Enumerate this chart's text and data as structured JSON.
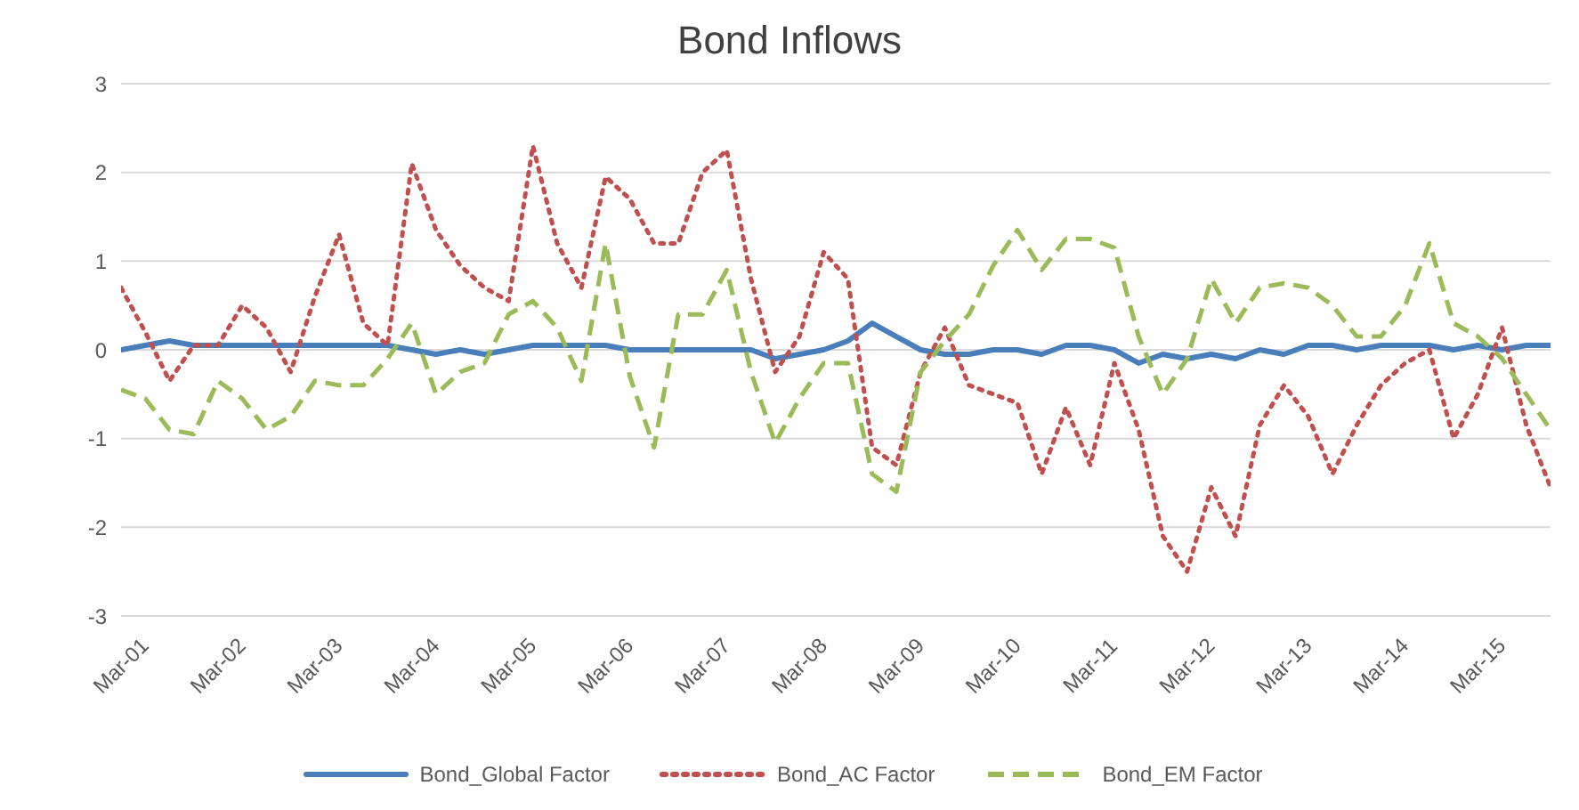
{
  "chart_data": {
    "type": "line",
    "title": "Bond Inflows",
    "categories": [
      "Mar-01",
      null,
      null,
      null,
      "Mar-02",
      null,
      null,
      null,
      "Mar-03",
      null,
      null,
      null,
      "Mar-04",
      null,
      null,
      null,
      "Mar-05",
      null,
      null,
      null,
      "Mar-06",
      null,
      null,
      null,
      "Mar-07",
      null,
      null,
      null,
      "Mar-08",
      null,
      null,
      null,
      "Mar-09",
      null,
      null,
      null,
      "Mar-10",
      null,
      null,
      null,
      "Mar-11",
      null,
      null,
      null,
      "Mar-12",
      null,
      null,
      null,
      "Mar-13",
      null,
      null,
      null,
      "Mar-14",
      null,
      null,
      null,
      "Mar-15",
      null,
      null,
      null
    ],
    "series": [
      {
        "name": "Bond_Global Factor",
        "color": "#4a7ebb",
        "line_style": "solid",
        "values": [
          0.0,
          0.05,
          0.1,
          0.05,
          0.05,
          0.05,
          0.05,
          0.05,
          0.05,
          0.05,
          0.05,
          0.05,
          0.0,
          -0.05,
          0.0,
          -0.05,
          0.0,
          0.05,
          0.05,
          0.05,
          0.05,
          0.0,
          0.0,
          0.0,
          0.0,
          0.0,
          0.0,
          -0.1,
          -0.05,
          0.0,
          0.1,
          0.3,
          0.15,
          0.0,
          -0.05,
          -0.05,
          0.0,
          0.0,
          -0.05,
          0.05,
          0.05,
          0.0,
          -0.15,
          -0.05,
          -0.1,
          -0.05,
          -0.1,
          0.0,
          -0.05,
          0.05,
          0.05,
          0.0,
          0.05,
          0.05,
          0.05,
          0.0,
          0.05,
          0.0,
          0.05,
          0.05
        ]
      },
      {
        "name": "Bond_AC Factor",
        "color": "#c0504d",
        "line_style": "dotted",
        "values": [
          0.7,
          0.2,
          -0.35,
          0.05,
          0.05,
          0.5,
          0.25,
          -0.25,
          0.6,
          1.3,
          0.3,
          0.05,
          2.1,
          1.35,
          0.95,
          0.7,
          0.55,
          2.3,
          1.2,
          0.7,
          1.95,
          1.7,
          1.2,
          1.2,
          2.0,
          2.25,
          0.8,
          -0.25,
          0.15,
          1.1,
          0.8,
          -1.1,
          -1.3,
          -0.25,
          0.25,
          -0.4,
          -0.5,
          -0.6,
          -1.4,
          -0.65,
          -1.3,
          -0.15,
          -0.9,
          -2.1,
          -2.5,
          -1.55,
          -2.1,
          -0.85,
          -0.4,
          -0.75,
          -1.4,
          -0.85,
          -0.4,
          -0.15,
          0.0,
          -1.0,
          -0.5,
          0.25,
          -0.85,
          -1.55
        ]
      },
      {
        "name": "Bond_EM Factor",
        "color": "#9bbb59",
        "line_style": "dashed",
        "values": [
          -0.45,
          -0.55,
          -0.9,
          -0.95,
          -0.35,
          -0.55,
          -0.9,
          -0.75,
          -0.35,
          -0.4,
          -0.4,
          -0.1,
          0.3,
          -0.5,
          -0.25,
          -0.15,
          0.4,
          0.55,
          0.25,
          -0.35,
          1.2,
          -0.3,
          -1.1,
          0.4,
          0.4,
          0.9,
          -0.25,
          -1.05,
          -0.55,
          -0.15,
          -0.15,
          -1.4,
          -1.6,
          -0.25,
          0.1,
          0.4,
          0.95,
          1.35,
          0.9,
          1.25,
          1.25,
          1.15,
          0.15,
          -0.5,
          -0.1,
          0.8,
          0.3,
          0.7,
          0.75,
          0.7,
          0.5,
          0.15,
          0.15,
          0.5,
          1.2,
          0.3,
          0.15,
          -0.1,
          -0.5,
          -0.9
        ]
      }
    ],
    "ylim": [
      -3,
      3
    ],
    "yticks": [
      -3,
      -2,
      -1,
      0,
      1,
      2,
      3
    ],
    "grid": "y",
    "legend": "bottom",
    "marker": "none"
  }
}
